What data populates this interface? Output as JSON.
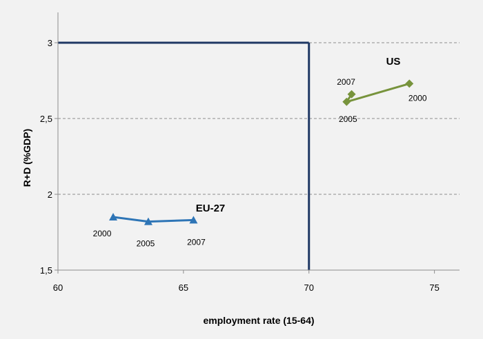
{
  "chart_data": {
    "type": "scatter",
    "title": "",
    "xlabel": "employment rate (15-64)",
    "ylabel": "R+D  (%GDP)",
    "xlim": [
      60,
      76
    ],
    "ylim": [
      1.5,
      3.2
    ],
    "x_ticks": [
      "60",
      "65",
      "70",
      "75"
    ],
    "y_ticks": [
      "1,5",
      "2",
      "2,5",
      "3"
    ],
    "grid": "horizontal dashed",
    "target": {
      "x": 70,
      "y": 3
    },
    "series": [
      {
        "name": "EU-27",
        "color": "#2e75b6",
        "marker": "triangle",
        "points": [
          {
            "label": "2000",
            "x": 62.2,
            "y": 1.85
          },
          {
            "label": "2005",
            "x": 63.6,
            "y": 1.82
          },
          {
            "label": "2007",
            "x": 65.4,
            "y": 1.83
          }
        ]
      },
      {
        "name": "US",
        "color": "#77933c",
        "marker": "diamond",
        "points": [
          {
            "label": "2005",
            "x": 71.5,
            "y": 2.61
          },
          {
            "label": "2007",
            "x": 71.7,
            "y": 2.66
          },
          {
            "label": "2000",
            "x": 74.0,
            "y": 2.73
          }
        ]
      }
    ]
  }
}
